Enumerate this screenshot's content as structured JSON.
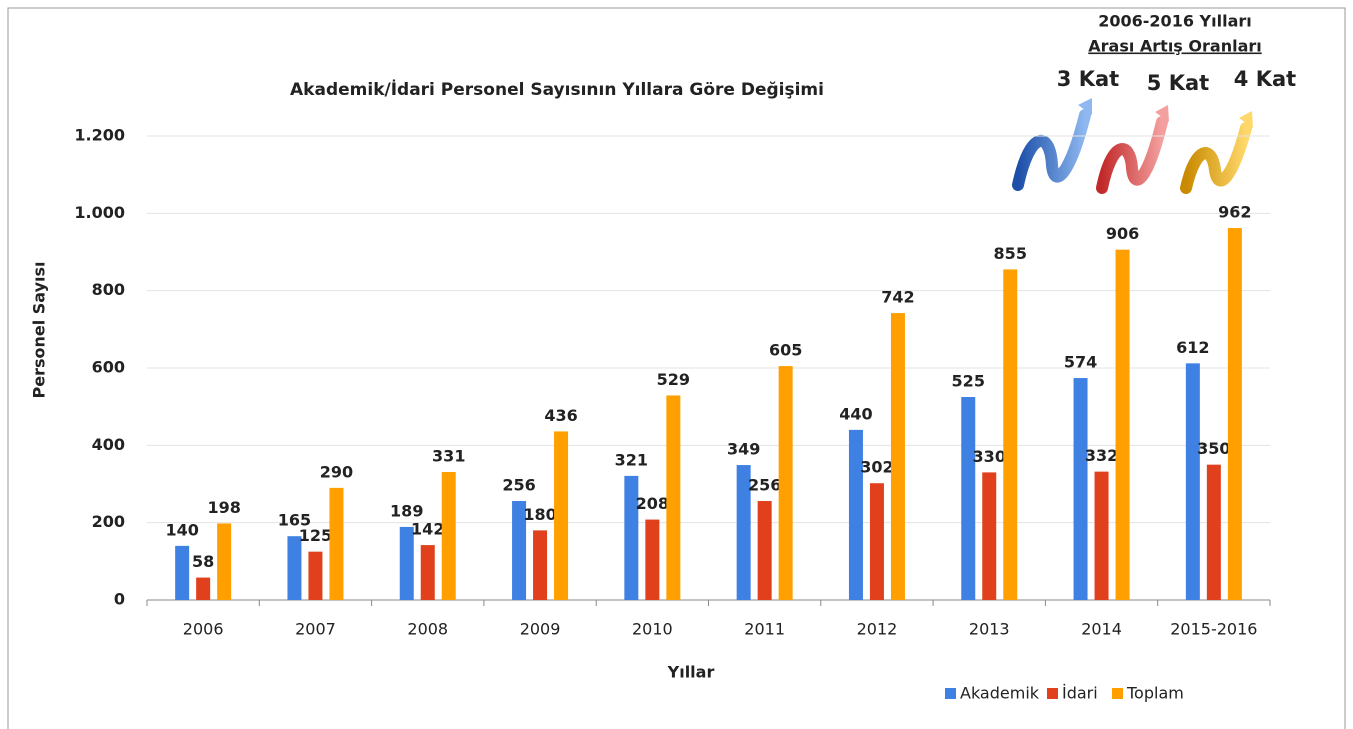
{
  "chart_data": {
    "type": "bar",
    "title": "Akademik/İdari Personel Sayısının Yıllara Göre Değişimi",
    "x_label": "Yıllar",
    "y_label": "Personel Sayısı",
    "categories": [
      "2006",
      "2007",
      "2008",
      "2009",
      "2010",
      "2011",
      "2012",
      "2013",
      "2014",
      "2015-2016"
    ],
    "series": [
      {
        "name": "Akademik",
        "color": "#3f80e3",
        "values": [
          140,
          165,
          189,
          256,
          321,
          349,
          440,
          525,
          574,
          612
        ]
      },
      {
        "name": "İdari",
        "color": "#e0401c",
        "values": [
          58,
          125,
          142,
          180,
          208,
          256,
          302,
          330,
          332,
          350
        ]
      },
      {
        "name": "Toplam",
        "color": "#ffa000",
        "values": [
          198,
          290,
          331,
          436,
          529,
          605,
          742,
          855,
          906,
          962
        ]
      }
    ],
    "ylim": [
      0,
      1200
    ],
    "yticks": [
      0,
      200,
      400,
      600,
      800,
      {
        "value": 1000,
        "label": "1.000"
      },
      {
        "value": 1200,
        "label": "1.200"
      }
    ],
    "grid": true,
    "legend": "bottom-right",
    "annotation": {
      "heading": [
        "2006-2016 Yılları",
        "Arası Artış Oranları"
      ],
      "items": [
        "3 Kat",
        "5 Kat",
        "4 Kat"
      ]
    }
  }
}
